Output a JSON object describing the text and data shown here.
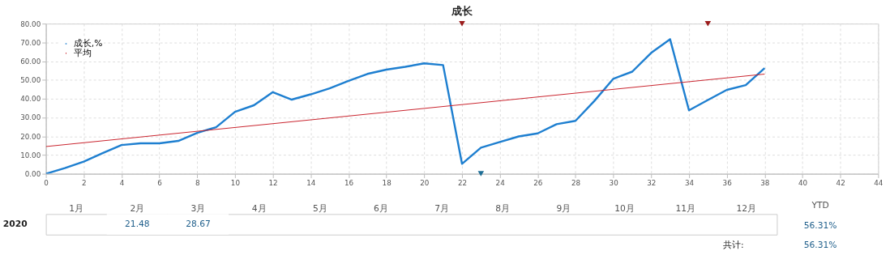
{
  "chart_data": [
    {
      "type": "line",
      "title": "成长",
      "x": [
        0,
        1,
        2,
        3,
        4,
        5,
        6,
        7,
        8,
        9,
        10,
        11,
        12,
        13,
        14,
        15,
        16,
        17,
        18,
        19,
        20,
        21,
        22,
        23,
        24,
        25,
        26,
        27,
        28,
        29,
        30,
        31,
        32,
        33,
        34,
        35,
        36,
        37,
        38
      ],
      "series": [
        {
          "name": "成长,%",
          "color": "#1e7fd0",
          "values": [
            0,
            3,
            6.5,
            11,
            15.3,
            16.2,
            16.2,
            17.5,
            21.8,
            24.8,
            33,
            36.5,
            43.5,
            39.5,
            42.3,
            45.5,
            49.5,
            53.2,
            55.5,
            57,
            58.8,
            57.9,
            5.3,
            13.9,
            16.9,
            19.9,
            21.5,
            26.4,
            28.2,
            38.8,
            50.6,
            54.4,
            64.4,
            71.7,
            33.8,
            39.3,
            44.7,
            47.2,
            56.3
          ]
        },
        {
          "name": "平均",
          "color": "#c8202a",
          "x": [
            0,
            38
          ],
          "values": [
            14.5,
            53.1
          ]
        },
        {
          "type": "scatter",
          "color": "#9b1c1c",
          "marker": "triangle",
          "x": [
            22,
            35
          ],
          "values": [
            80,
            80
          ]
        },
        {
          "type": "scatter",
          "color": "#1e6e96",
          "marker": "triangle",
          "x": [
            23
          ],
          "values": [
            0
          ]
        }
      ],
      "xlim": [
        0,
        44
      ],
      "xticks": [
        0,
        2,
        4,
        6,
        8,
        10,
        12,
        14,
        16,
        18,
        20,
        22,
        24,
        26,
        28,
        30,
        32,
        34,
        36,
        38,
        40,
        42,
        44
      ],
      "ylim": [
        0,
        80
      ],
      "yticks": [
        {
          "value": 0,
          "label": "0.00"
        },
        {
          "value": 10,
          "label": "10.00"
        },
        {
          "value": 20,
          "label": "20.00"
        },
        {
          "value": 30,
          "label": "30.00"
        },
        {
          "value": 40,
          "label": "40.00"
        },
        {
          "value": 50,
          "label": "50.00"
        },
        {
          "value": 60,
          "label": "60.00"
        },
        {
          "value": 70,
          "label": "70.00"
        },
        {
          "value": 80,
          "label": "80.00"
        }
      ],
      "grid": true,
      "legend": "top left",
      "line_style": "solid"
    },
    {
      "type": "heatmap",
      "categories": [
        "1月",
        "2月",
        "3月",
        "4月",
        "5月",
        "6月",
        "7月",
        "8月",
        "9月",
        "10月",
        "11月",
        "12月"
      ],
      "y_categories": [
        "2020"
      ],
      "cells": [
        [
          null,
          21.48,
          28.67,
          null,
          null,
          null,
          null,
          null,
          null,
          null,
          null,
          null
        ]
      ],
      "data_labels": true,
      "annotations": [
        "YTD",
        "56.31%",
        "共计:",
        "56.31%"
      ]
    }
  ]
}
